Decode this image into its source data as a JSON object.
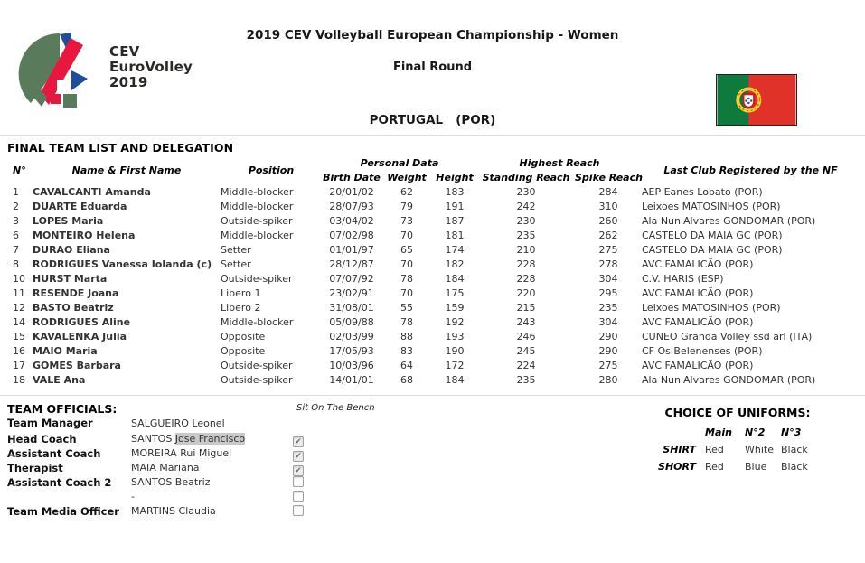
{
  "header": {
    "title": "2019 CEV Volleyball European Championship - Women",
    "subtitle": "Final Round",
    "team": "PORTUGAL   (POR)",
    "logo": {
      "line1": "CEV",
      "line2": "EuroVolley",
      "line3": "2019"
    }
  },
  "section_title": "FINAL TEAM LIST AND DELEGATION",
  "roster": {
    "group_headers": {
      "personal_data": "Personal Data",
      "highest_reach": "Highest Reach"
    },
    "col_headers": {
      "no": "N°",
      "name": "Name & First Name",
      "position": "Position",
      "birth_date": "Birth Date",
      "weight": "Weight",
      "height": "Height",
      "standing_reach": "Standing Reach",
      "spike_reach": "Spike Reach",
      "last_club": "Last Club Registered by the NF"
    },
    "players": [
      {
        "no": "1",
        "name": "CAVALCANTI Amanda",
        "position": "Middle-blocker",
        "birth_date": "20/01/02",
        "weight": "62",
        "height": "183",
        "standing_reach": "230",
        "spike_reach": "284",
        "last_club": "AEP Eanes Lobato (POR)"
      },
      {
        "no": "2",
        "name": "DUARTE Eduarda",
        "position": "Middle-blocker",
        "birth_date": "28/07/93",
        "weight": "79",
        "height": "191",
        "standing_reach": "242",
        "spike_reach": "310",
        "last_club": "Leixoes MATOSINHOS (POR)"
      },
      {
        "no": "3",
        "name": "LOPES Maria",
        "position": "Outside-spiker",
        "birth_date": "03/04/02",
        "weight": "73",
        "height": "187",
        "standing_reach": "230",
        "spike_reach": "260",
        "last_club": "Ala Nun'Alvares GONDOMAR (POR)"
      },
      {
        "no": "6",
        "name": "MONTEIRO Helena",
        "position": "Middle-blocker",
        "birth_date": "07/02/98",
        "weight": "70",
        "height": "181",
        "standing_reach": "235",
        "spike_reach": "262",
        "last_club": "CASTELO DA MAIA GC (POR)"
      },
      {
        "no": "7",
        "name": "DURAO Eliana",
        "position": "Setter",
        "birth_date": "01/01/97",
        "weight": "65",
        "height": "174",
        "standing_reach": "210",
        "spike_reach": "275",
        "last_club": "CASTELO DA MAIA GC (POR)"
      },
      {
        "no": "8",
        "name": "RODRIGUES Vanessa Iolanda (c)",
        "position": "Setter",
        "birth_date": "28/12/87",
        "weight": "70",
        "height": "182",
        "standing_reach": "228",
        "spike_reach": "278",
        "last_club": "AVC FAMALICÃO (POR)"
      },
      {
        "no": "10",
        "name": "HURST Marta",
        "position": "Outside-spiker",
        "birth_date": "07/07/92",
        "weight": "78",
        "height": "184",
        "standing_reach": "228",
        "spike_reach": "304",
        "last_club": "C.V. HARIS (ESP)"
      },
      {
        "no": "11",
        "name": "RESENDE Joana",
        "position": "Libero 1",
        "birth_date": "23/02/91",
        "weight": "70",
        "height": "175",
        "standing_reach": "220",
        "spike_reach": "295",
        "last_club": "AVC FAMALICÃO (POR)"
      },
      {
        "no": "12",
        "name": "BASTO Beatriz",
        "position": "Libero 2",
        "birth_date": "31/08/01",
        "weight": "55",
        "height": "159",
        "standing_reach": "215",
        "spike_reach": "235",
        "last_club": "Leixoes MATOSINHOS (POR)"
      },
      {
        "no": "14",
        "name": "RODRIGUES Aline",
        "position": "Middle-blocker",
        "birth_date": "05/09/88",
        "weight": "78",
        "height": "192",
        "standing_reach": "243",
        "spike_reach": "304",
        "last_club": "AVC FAMALICÃO (POR)"
      },
      {
        "no": "15",
        "name": "KAVALENKA Julia",
        "position": "Opposite",
        "birth_date": "02/03/99",
        "weight": "88",
        "height": "193",
        "standing_reach": "246",
        "spike_reach": "290",
        "last_club": "CUNEO Granda Volley ssd arl (ITA)"
      },
      {
        "no": "16",
        "name": "MAIO Maria",
        "position": "Opposite",
        "birth_date": "17/05/93",
        "weight": "83",
        "height": "190",
        "standing_reach": "245",
        "spike_reach": "290",
        "last_club": "CF Os Belenenses (POR)"
      },
      {
        "no": "17",
        "name": "GOMES Barbara",
        "position": "Outside-spiker",
        "birth_date": "10/03/96",
        "weight": "64",
        "height": "172",
        "standing_reach": "224",
        "spike_reach": "275",
        "last_club": "AVC FAMALICÃO (POR)"
      },
      {
        "no": "18",
        "name": "VALE Ana",
        "position": "Outside-spiker",
        "birth_date": "14/01/01",
        "weight": "68",
        "height": "184",
        "standing_reach": "235",
        "spike_reach": "280",
        "last_club": "Ala Nun'Alvares GONDOMAR (POR)"
      }
    ]
  },
  "team_officials": {
    "title": "TEAM OFFICIALS:",
    "bench_label": "Sit On The Bench",
    "check_glyph": "✔",
    "rows": [
      {
        "role": "Team Manager",
        "name": "SALGUEIRO Leonel",
        "checkbox": "none"
      },
      {
        "role": "Head Coach",
        "name": "SANTOS ",
        "name_highlight": "Jose Francisco",
        "checkbox": "checked"
      },
      {
        "role": "Assistant Coach",
        "name": "MOREIRA Rui Miguel",
        "checkbox": "checked"
      },
      {
        "role": "Therapist",
        "name": "MAIA Mariana",
        "checkbox": "checked"
      },
      {
        "role": "Assistant Coach 2",
        "name": "SANTOS Beatriz",
        "checkbox": "unchecked"
      },
      {
        "role": "",
        "name": "-",
        "checkbox": "unchecked"
      },
      {
        "role": "Team Media Officer",
        "name": "MARTINS Claudia",
        "checkbox": "unchecked"
      }
    ]
  },
  "uniforms": {
    "title": "CHOICE OF UNIFORMS:",
    "corner": "",
    "col_headers": [
      "Main",
      "N°2",
      "N°3"
    ],
    "rows": [
      {
        "label": "SHIRT",
        "values": [
          "Red",
          "White",
          "Black"
        ]
      },
      {
        "label": "SHORT",
        "values": [
          "Red",
          "Blue",
          "Black"
        ]
      }
    ]
  },
  "colors": {
    "logo_green": "#5a7a5c",
    "logo_blue": "#1d4e9e",
    "logo_red": "#e8173d",
    "flag_green": "#0f7a3d",
    "flag_red": "#e03228",
    "flag_yellow": "#f6d32d",
    "separator": "#dcdcdc",
    "highlight": "#c9c9c9"
  }
}
